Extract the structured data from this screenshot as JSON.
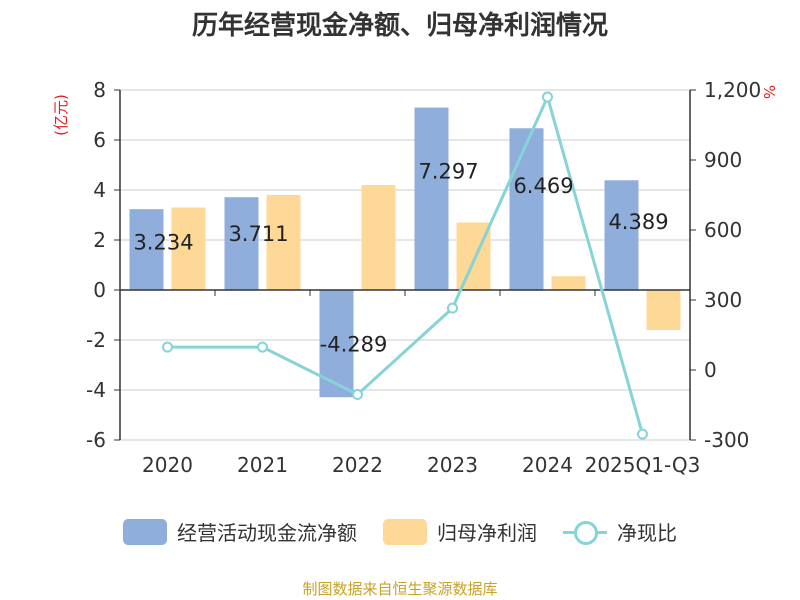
{
  "chart_data": {
    "type": "bar",
    "title": "历年经营现金净额、归母净利润情况",
    "categories": [
      "2020",
      "2021",
      "2022",
      "2023",
      "2024",
      "2025Q1-Q3"
    ],
    "left_unit": "(亿元)",
    "right_unit": "%",
    "left_axis": {
      "min": -6,
      "max": 8,
      "ticks": [
        "-6",
        "-4",
        "-2",
        "0",
        "2",
        "4",
        "6",
        "8"
      ]
    },
    "right_axis": {
      "min": -300,
      "max": 1200,
      "ticks": [
        "-300",
        "0",
        "300",
        "600",
        "900",
        "1,200"
      ]
    },
    "series": [
      {
        "name": "经营活动现金流净额",
        "color": "#8FAEDB",
        "axis": "left",
        "values": [
          3.234,
          3.711,
          -4.289,
          7.297,
          6.469,
          4.389
        ],
        "labels": [
          "3.234",
          "3.711",
          "-4.289",
          "7.297",
          "6.469",
          "4.389"
        ]
      },
      {
        "name": "归母净利润",
        "color": "#FDD896",
        "axis": "left",
        "values": [
          3.3,
          3.8,
          4.2,
          2.7,
          0.55,
          -1.6
        ]
      },
      {
        "name": "净现比",
        "color": "#86D3D8",
        "axis": "right",
        "kind": "line",
        "values": [
          98,
          98,
          -105,
          265,
          1170,
          -275
        ]
      }
    ],
    "grid": true,
    "legend_position": "bottom"
  },
  "footer": {
    "source": "制图数据来自恒生聚源数据库"
  }
}
